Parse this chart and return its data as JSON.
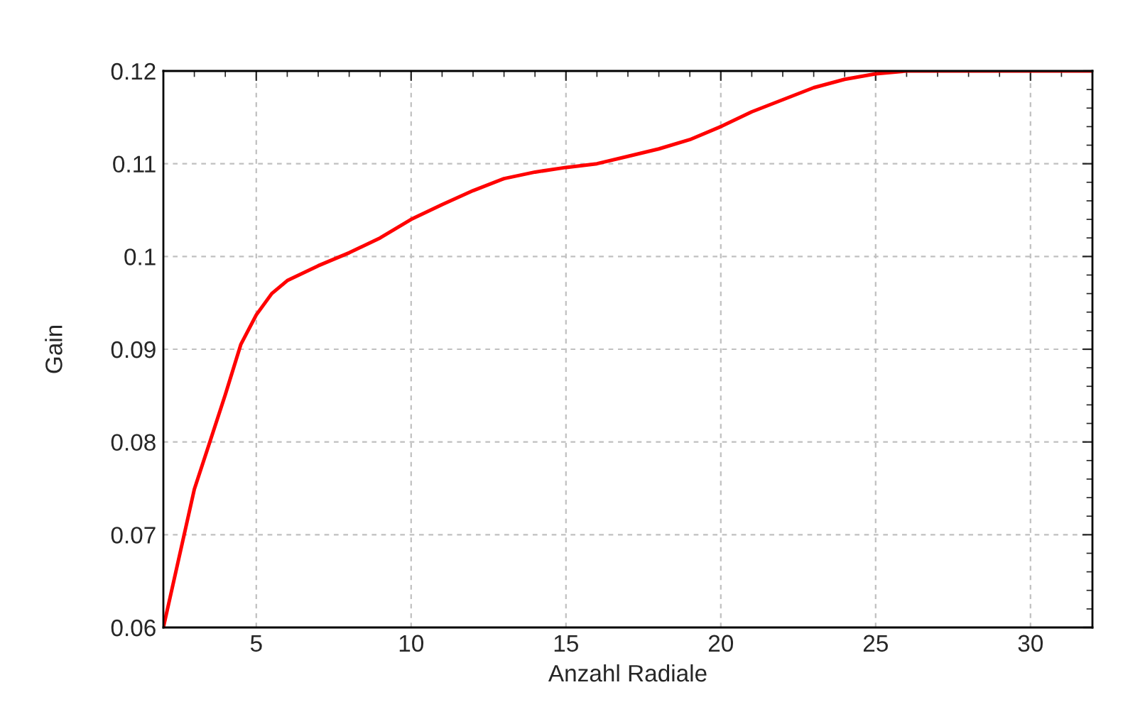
{
  "chart_data": {
    "type": "line",
    "xlabel": "Anzahl Radiale",
    "ylabel": "Gain",
    "x": [
      2,
      3,
      3.5,
      4,
      4.5,
      5,
      5.5,
      6,
      7,
      8,
      9,
      10,
      11,
      12,
      13,
      14,
      15,
      16,
      17,
      18,
      19,
      20,
      21,
      22,
      23,
      24,
      25,
      26,
      32
    ],
    "series": [
      {
        "color": "#ff0000",
        "values": [
          0.06,
          0.0749,
          0.08,
          0.0851,
          0.0905,
          0.0937,
          0.096,
          0.0974,
          0.099,
          0.1004,
          0.102,
          0.104,
          0.1056,
          0.1071,
          0.1084,
          0.1091,
          0.1096,
          0.11,
          0.1108,
          0.1116,
          0.1126,
          0.114,
          0.1156,
          0.1169,
          0.1182,
          0.1191,
          0.1197,
          0.12,
          0.12
        ]
      }
    ],
    "xlim": [
      2,
      32
    ],
    "xticks": [
      5,
      10,
      15,
      20,
      25,
      30
    ],
    "ylim": [
      0.06,
      0.12
    ],
    "yticks": [
      0.06,
      0.07,
      0.08,
      0.09,
      0.1,
      0.11,
      0.12
    ],
    "grid": true,
    "marker": "none",
    "line_style": "solid"
  }
}
